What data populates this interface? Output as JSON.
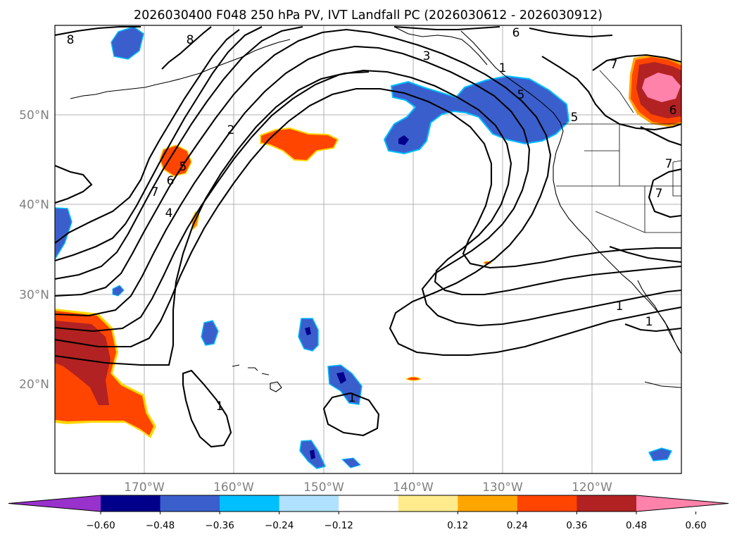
{
  "title": "2026030400 F048 250 hPa PV, IVT Landfall PC (2026030612 - 2026030912)",
  "lat_labels": [
    "50°N",
    "40°N",
    "30°N",
    "20°N"
  ],
  "lon_labels": [
    "170°W",
    "160°W",
    "150°W",
    "140°W",
    "130°W",
    "120°W"
  ],
  "colorbar": {
    "ticks": [
      "−0.60",
      "−0.48",
      "−0.36",
      "−0.24",
      "−0.12",
      "0.12",
      "0.24",
      "0.36",
      "0.48",
      "0.60"
    ],
    "colors": [
      "#9932cc",
      "#00008b",
      "#3a5fcd",
      "#00bfff",
      "#b0e2ff",
      "#ffffff",
      "#ffeb8c",
      "#ffa500",
      "#ff4500",
      "#b22222",
      "#ff82ab"
    ]
  },
  "contour_labels": [
    "8",
    "8",
    "6",
    "7",
    "3",
    "2",
    "5",
    "4",
    "5",
    "6",
    "7",
    "7",
    "6",
    "1",
    "1",
    "1",
    "1",
    "7",
    "1",
    "5"
  ]
}
